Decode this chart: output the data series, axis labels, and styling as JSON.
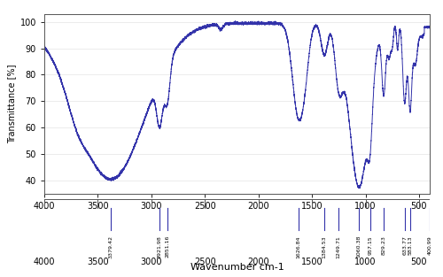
{
  "xlabel": "Wavenumber cm-1",
  "ylabel": "Transmittance [%]",
  "ylim": [
    35,
    103
  ],
  "yticks": [
    40,
    50,
    60,
    70,
    80,
    90,
    100
  ],
  "xticks": [
    500,
    1000,
    1500,
    2000,
    2500,
    3000,
    3500,
    4000
  ],
  "line_color": "#3333aa",
  "background_color": "#ffffff",
  "peak_labels": [
    {
      "x": 3379.42,
      "label": "3379.42"
    },
    {
      "x": 2921.98,
      "label": "2921.98"
    },
    {
      "x": 2851.16,
      "label": "2851.16"
    },
    {
      "x": 1626.84,
      "label": "1626.84"
    },
    {
      "x": 1384.53,
      "label": "1384.53"
    },
    {
      "x": 1249.71,
      "label": "1249.71"
    },
    {
      "x": 1060.38,
      "label": "1060.38"
    },
    {
      "x": 957.15,
      "label": "957.15"
    },
    {
      "x": 829.23,
      "label": "829.23"
    },
    {
      "x": 633.77,
      "label": "633.77"
    },
    {
      "x": 583.13,
      "label": "583.13"
    },
    {
      "x": 400.99,
      "label": "400.99"
    }
  ]
}
